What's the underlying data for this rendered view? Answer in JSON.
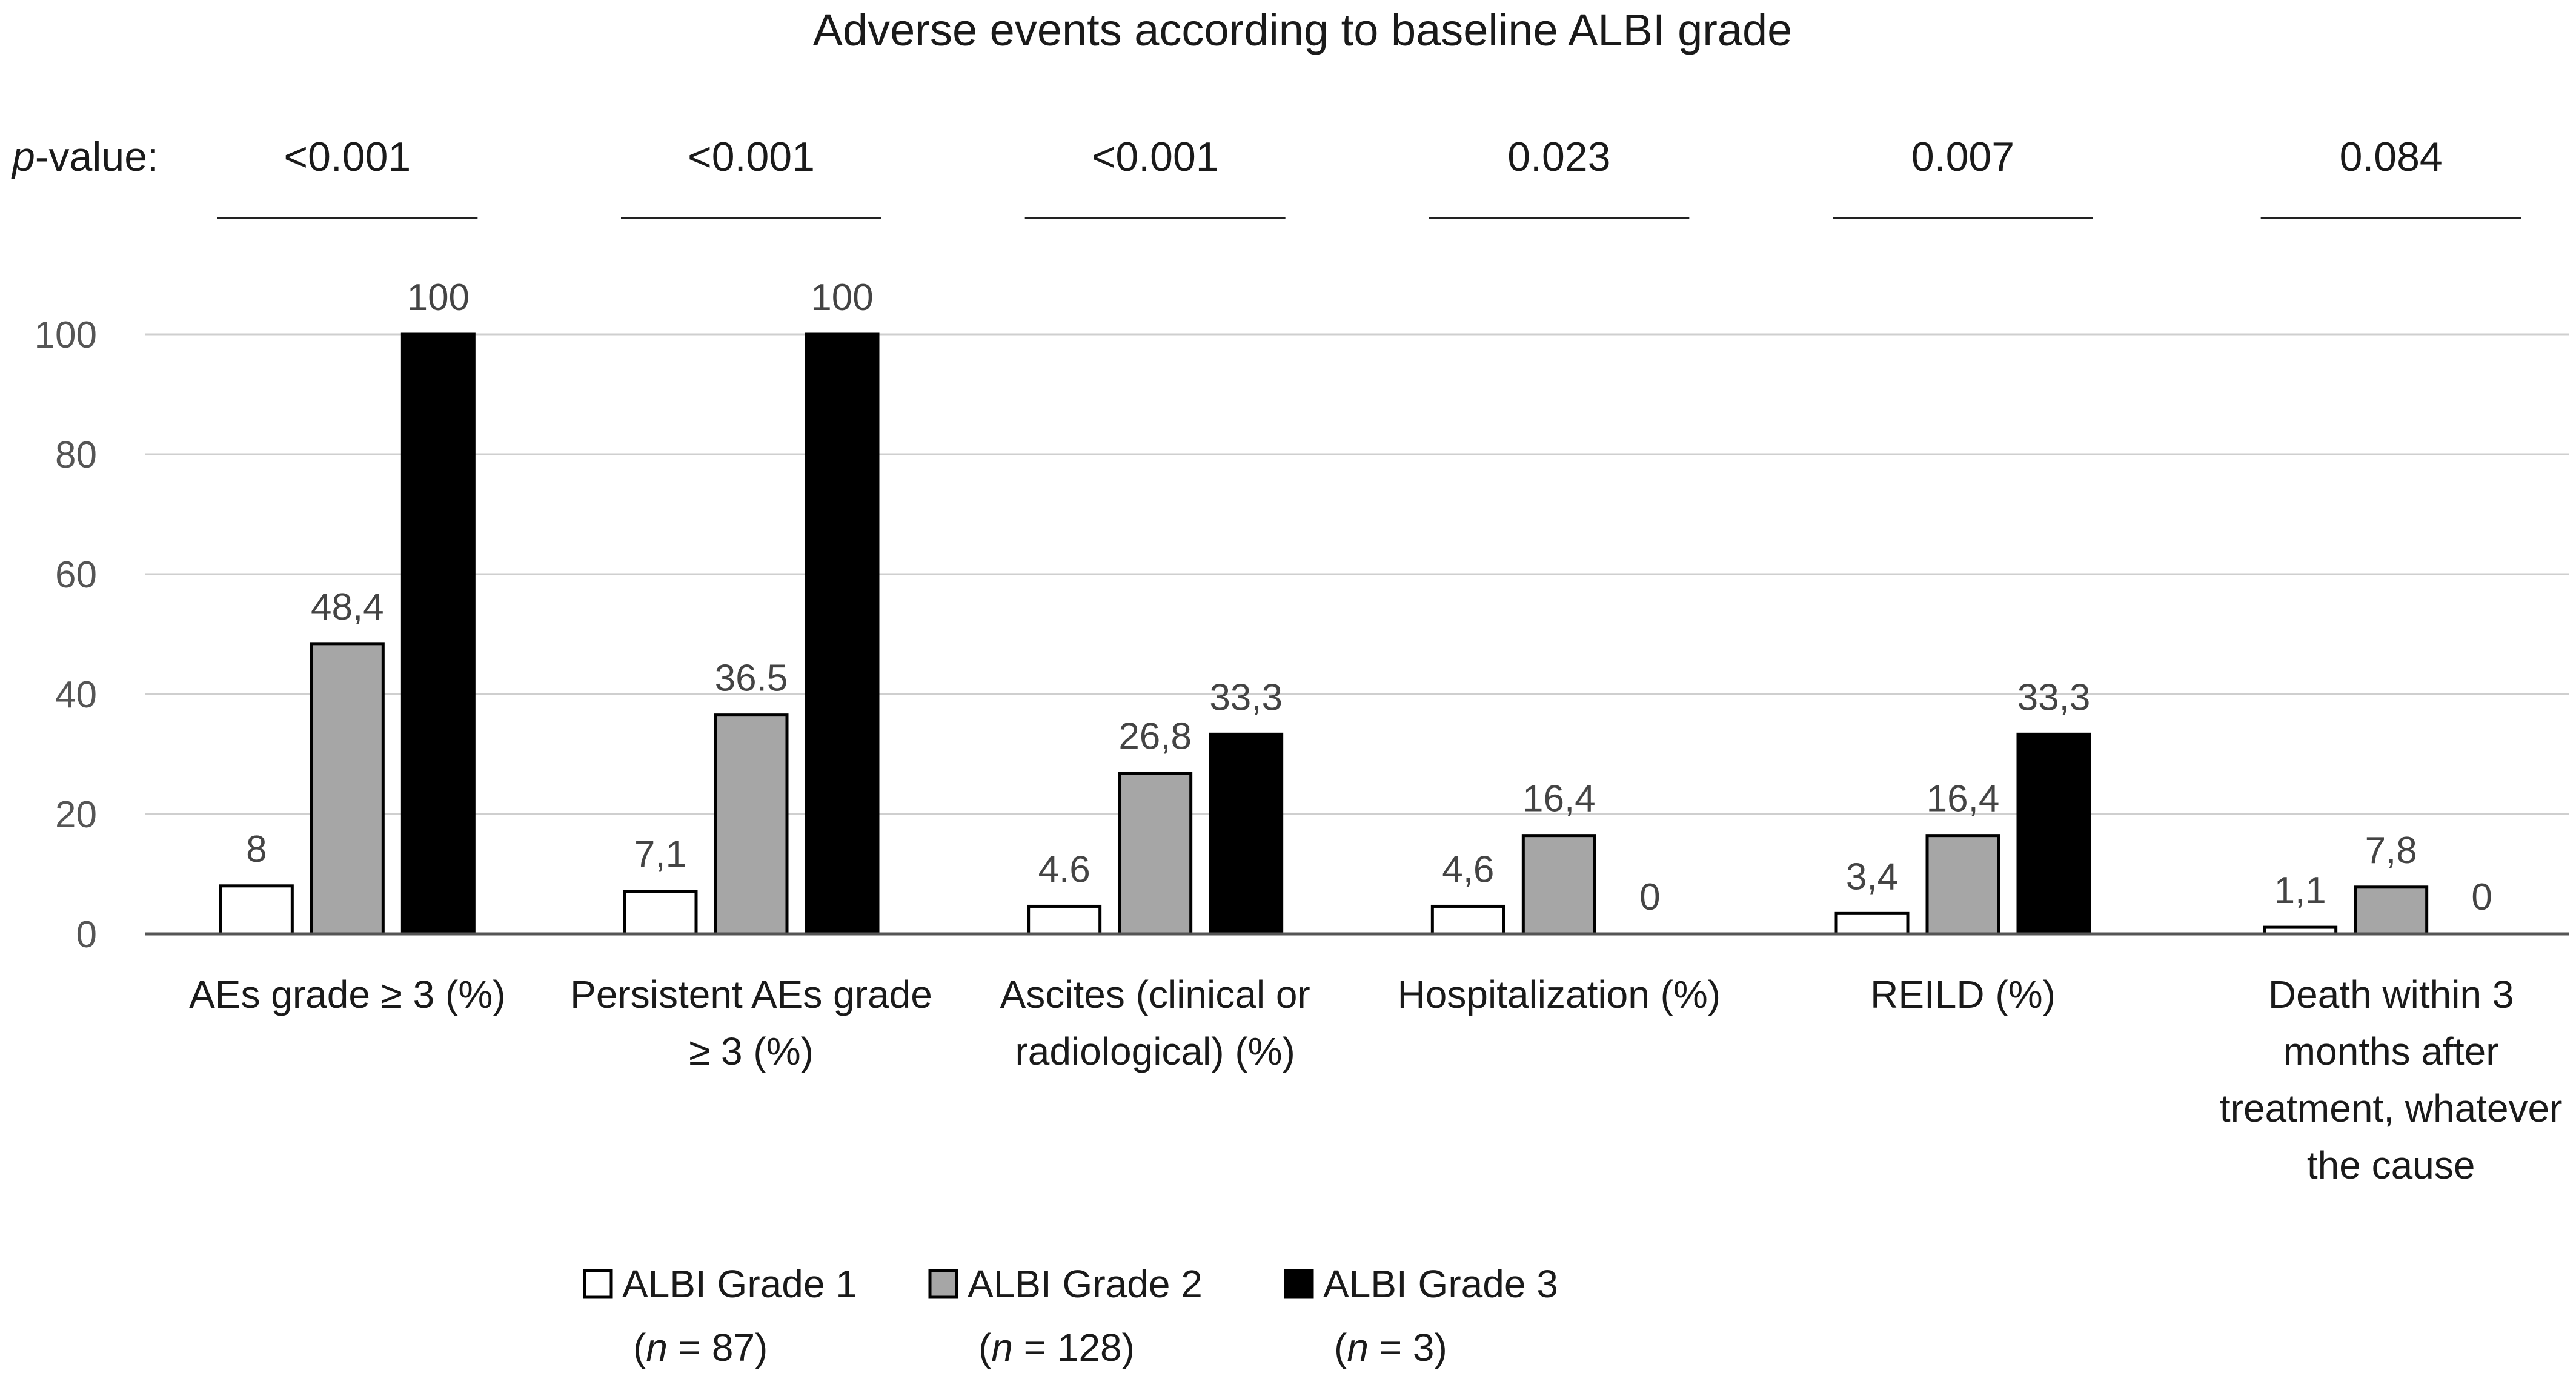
{
  "chart_data": {
    "type": "bar",
    "title": "Adverse events according to baseline ALBI grade",
    "pvalue_label_italic": "p",
    "pvalue_label_rest": "-value:",
    "pvalues": [
      "<0.001",
      "<0.001",
      "<0.001",
      "0.023",
      "0.007",
      "0.084"
    ],
    "categories": [
      [
        "AEs grade ≥ 3 (%)"
      ],
      [
        "Persistent AEs grade",
        "≥ 3 (%)"
      ],
      [
        "Ascites (clinical or",
        "radiological) (%)"
      ],
      [
        "Hospitalization (%)"
      ],
      [
        "REILD (%)"
      ],
      [
        "Death within 3",
        "months after",
        "treatment, whatever",
        "the cause"
      ]
    ],
    "series": [
      {
        "name": "ALBI Grade 1",
        "n_label_pre": "(",
        "n_label_italic": "n",
        "n_label_post": " = 87)",
        "color": "#ffffff",
        "values": [
          8,
          7.1,
          4.6,
          4.6,
          3.4,
          1.1
        ],
        "labels": [
          "8",
          "7,1",
          "4.6",
          "4,6",
          "3,4",
          "1,1"
        ]
      },
      {
        "name": "ALBI Grade 2",
        "n_label_pre": "(",
        "n_label_italic": "n",
        "n_label_post": " = 128)",
        "color": "#a6a6a6",
        "values": [
          48.4,
          36.5,
          26.8,
          16.4,
          16.4,
          7.8
        ],
        "labels": [
          "48,4",
          "36.5",
          "26,8",
          "16,4",
          "16,4",
          "7,8"
        ]
      },
      {
        "name": "ALBI Grade 3",
        "n_label_pre": "(",
        "n_label_italic": "n",
        "n_label_post": " = 3)",
        "color": "#000000",
        "values": [
          100,
          100,
          33.3,
          0,
          33.3,
          0
        ],
        "labels": [
          "100",
          "100",
          "33,3",
          "0",
          "33,3",
          "0"
        ]
      }
    ],
    "yticks": [
      0,
      20,
      40,
      60,
      80,
      100
    ],
    "ylim": [
      0,
      100
    ],
    "xlabel": "",
    "ylabel": "",
    "grid": true,
    "legend_position": "bottom"
  }
}
